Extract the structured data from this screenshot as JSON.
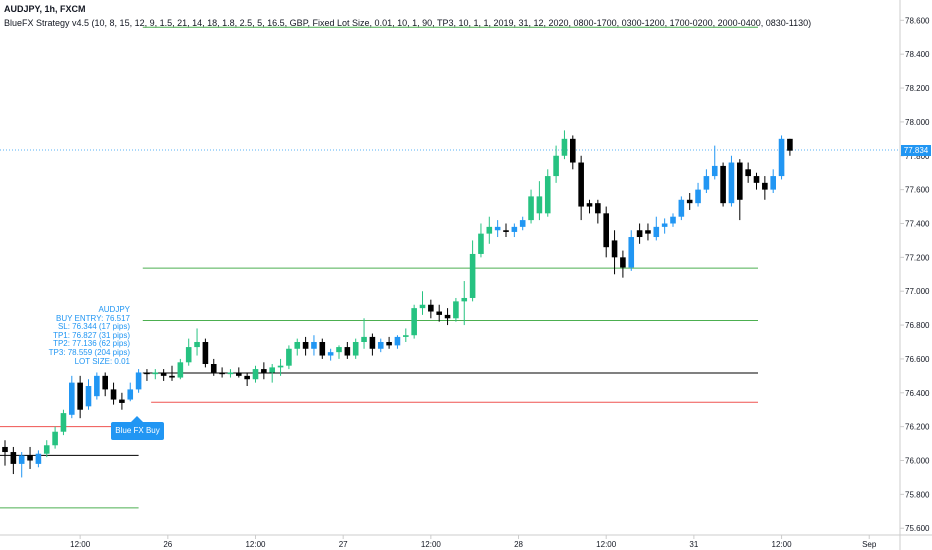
{
  "header": {
    "symbol_line": "AUDJPY, 1h, FXCM",
    "strategy_line": "BlueFX Strategy v4.5 (10, 8, 15, 12, 9, 1.5, 21, 14, 18, 1.8, 2.5, 5, 16.5, GBP, Fixed Lot Size, 0.01, 10, 1, 90, TP3, 10, 1, 1, 2019, 31, 12, 2020, 0800-1700, 0300-1200, 1700-0200, 2000-0400, 0830-1130)"
  },
  "trade_info": {
    "lines": [
      "AUDJPY",
      "BUY ENTRY: 76.517",
      "SL: 76.344 (17 pips)",
      "TP1: 76.827 (31 pips)",
      "TP2: 77.136 (62 pips)",
      "TP3: 78.559 (204 pips)",
      "LOT SIZE: 0.01"
    ]
  },
  "signal": {
    "label": "Blue FX Buy"
  },
  "current_price": {
    "label": "77.834",
    "value": 77.834
  },
  "colors": {
    "bull_green": "#26c281",
    "bull_blue": "#2196f3",
    "bear": "#000000",
    "tp_line": "#4caf50",
    "sl_line": "#ef5350",
    "entry_line": "#000000",
    "price_line": "#2196f3",
    "axis_text": "#131722",
    "axis_line": "#cccccc"
  },
  "chart_data": {
    "type": "candlestick",
    "symbol": "AUDJPY",
    "timeframe": "1h",
    "ylim": [
      75.56,
      78.72
    ],
    "y_ticks": [
      "75.600",
      "75.800",
      "76.000",
      "76.200",
      "76.400",
      "76.600",
      "76.800",
      "77.000",
      "77.200",
      "77.400",
      "77.600",
      "77.800",
      "78.000",
      "78.200",
      "78.400",
      "78.600"
    ],
    "x_ticks": [
      "12:00",
      "26",
      "12:00",
      "27",
      "12:00",
      "28",
      "12:00",
      "31",
      "12:00",
      "Sep"
    ],
    "x_tick_index": [
      9,
      19.5,
      30,
      40.5,
      51,
      61.5,
      72,
      82.5,
      93,
      103.5
    ],
    "levels": [
      {
        "value": 78.559,
        "type": "tp",
        "start": 16.5
      },
      {
        "value": 77.136,
        "type": "tp",
        "start": 16.5
      },
      {
        "value": 76.827,
        "type": "tp",
        "start": 16.5
      },
      {
        "value": 76.517,
        "type": "entry",
        "start": 16.5
      },
      {
        "value": 76.344,
        "type": "sl",
        "start": 17.5
      },
      {
        "value": 76.2,
        "type": "sl",
        "start": -1,
        "end": 16
      },
      {
        "value": 76.03,
        "type": "entry",
        "start": -1,
        "end": 16
      },
      {
        "value": 75.72,
        "type": "tp",
        "start": -1,
        "end": 16
      }
    ],
    "candles": [
      {
        "o": 76.08,
        "h": 76.12,
        "l": 75.97,
        "c": 76.05,
        "color": "bear"
      },
      {
        "o": 76.05,
        "h": 76.08,
        "l": 75.92,
        "c": 75.98,
        "color": "bear"
      },
      {
        "o": 75.98,
        "h": 76.05,
        "l": 75.9,
        "c": 76.03,
        "color": "blue"
      },
      {
        "o": 76.03,
        "h": 76.08,
        "l": 75.95,
        "c": 76.0,
        "color": "bear"
      },
      {
        "o": 75.98,
        "h": 76.06,
        "l": 75.96,
        "c": 76.04,
        "color": "blue"
      },
      {
        "o": 76.04,
        "h": 76.12,
        "l": 76.02,
        "c": 76.09,
        "color": "green"
      },
      {
        "o": 76.09,
        "h": 76.2,
        "l": 76.07,
        "c": 76.17,
        "color": "green"
      },
      {
        "o": 76.17,
        "h": 76.3,
        "l": 76.15,
        "c": 76.28,
        "color": "green"
      },
      {
        "o": 76.27,
        "h": 76.5,
        "l": 76.25,
        "c": 76.46,
        "color": "blue"
      },
      {
        "o": 76.46,
        "h": 76.5,
        "l": 76.25,
        "c": 76.3,
        "color": "bear"
      },
      {
        "o": 76.32,
        "h": 76.48,
        "l": 76.3,
        "c": 76.44,
        "color": "blue"
      },
      {
        "o": 76.38,
        "h": 76.52,
        "l": 76.36,
        "c": 76.5,
        "color": "blue"
      },
      {
        "o": 76.5,
        "h": 76.52,
        "l": 76.38,
        "c": 76.42,
        "color": "bear"
      },
      {
        "o": 76.42,
        "h": 76.46,
        "l": 76.33,
        "c": 76.36,
        "color": "bear"
      },
      {
        "o": 76.36,
        "h": 76.4,
        "l": 76.3,
        "c": 76.34,
        "color": "bear"
      },
      {
        "o": 76.36,
        "h": 76.46,
        "l": 76.35,
        "c": 76.42,
        "color": "blue"
      },
      {
        "o": 76.42,
        "h": 76.54,
        "l": 76.4,
        "c": 76.52,
        "color": "blue"
      },
      {
        "o": 76.52,
        "h": 76.54,
        "l": 76.47,
        "c": 76.51,
        "color": "bear"
      },
      {
        "o": 76.51,
        "h": 76.54,
        "l": 76.48,
        "c": 76.52,
        "color": "green"
      },
      {
        "o": 76.52,
        "h": 76.54,
        "l": 76.47,
        "c": 76.5,
        "color": "bear"
      },
      {
        "o": 76.5,
        "h": 76.56,
        "l": 76.47,
        "c": 76.49,
        "color": "bear"
      },
      {
        "o": 76.49,
        "h": 76.6,
        "l": 76.48,
        "c": 76.58,
        "color": "green"
      },
      {
        "o": 76.58,
        "h": 76.72,
        "l": 76.56,
        "c": 76.67,
        "color": "green"
      },
      {
        "o": 76.67,
        "h": 76.78,
        "l": 76.62,
        "c": 76.7,
        "color": "green"
      },
      {
        "o": 76.7,
        "h": 76.72,
        "l": 76.55,
        "c": 76.57,
        "color": "bear"
      },
      {
        "o": 76.57,
        "h": 76.6,
        "l": 76.5,
        "c": 76.52,
        "color": "bear"
      },
      {
        "o": 76.52,
        "h": 76.55,
        "l": 76.49,
        "c": 76.51,
        "color": "bear"
      },
      {
        "o": 76.51,
        "h": 76.54,
        "l": 76.49,
        "c": 76.52,
        "color": "green"
      },
      {
        "o": 76.52,
        "h": 76.55,
        "l": 76.49,
        "c": 76.5,
        "color": "bear"
      },
      {
        "o": 76.5,
        "h": 76.52,
        "l": 76.44,
        "c": 76.48,
        "color": "bear"
      },
      {
        "o": 76.48,
        "h": 76.56,
        "l": 76.46,
        "c": 76.54,
        "color": "green"
      },
      {
        "o": 76.54,
        "h": 76.58,
        "l": 76.48,
        "c": 76.52,
        "color": "bear"
      },
      {
        "o": 76.52,
        "h": 76.57,
        "l": 76.46,
        "c": 76.55,
        "color": "green"
      },
      {
        "o": 76.55,
        "h": 76.6,
        "l": 76.5,
        "c": 76.56,
        "color": "green"
      },
      {
        "o": 76.56,
        "h": 76.68,
        "l": 76.54,
        "c": 76.66,
        "color": "green"
      },
      {
        "o": 76.66,
        "h": 76.72,
        "l": 76.62,
        "c": 76.7,
        "color": "green"
      },
      {
        "o": 76.7,
        "h": 76.73,
        "l": 76.62,
        "c": 76.66,
        "color": "bear"
      },
      {
        "o": 76.66,
        "h": 76.74,
        "l": 76.62,
        "c": 76.7,
        "color": "blue"
      },
      {
        "o": 76.7,
        "h": 76.72,
        "l": 76.6,
        "c": 76.62,
        "color": "bear"
      },
      {
        "o": 76.62,
        "h": 76.66,
        "l": 76.59,
        "c": 76.64,
        "color": "blue"
      },
      {
        "o": 76.64,
        "h": 76.68,
        "l": 76.6,
        "c": 76.67,
        "color": "green"
      },
      {
        "o": 76.67,
        "h": 76.7,
        "l": 76.6,
        "c": 76.62,
        "color": "bear"
      },
      {
        "o": 76.62,
        "h": 76.72,
        "l": 76.6,
        "c": 76.7,
        "color": "green"
      },
      {
        "o": 76.7,
        "h": 76.84,
        "l": 76.66,
        "c": 76.73,
        "color": "green"
      },
      {
        "o": 76.73,
        "h": 76.75,
        "l": 76.62,
        "c": 76.66,
        "color": "bear"
      },
      {
        "o": 76.66,
        "h": 76.72,
        "l": 76.64,
        "c": 76.7,
        "color": "blue"
      },
      {
        "o": 76.7,
        "h": 76.73,
        "l": 76.66,
        "c": 76.68,
        "color": "bear"
      },
      {
        "o": 76.68,
        "h": 76.74,
        "l": 76.66,
        "c": 76.73,
        "color": "blue"
      },
      {
        "o": 76.73,
        "h": 76.78,
        "l": 76.7,
        "c": 76.74,
        "color": "green"
      },
      {
        "o": 76.74,
        "h": 76.92,
        "l": 76.72,
        "c": 76.9,
        "color": "green"
      },
      {
        "o": 76.9,
        "h": 77.0,
        "l": 76.86,
        "c": 76.92,
        "color": "green"
      },
      {
        "o": 76.92,
        "h": 76.95,
        "l": 76.84,
        "c": 76.88,
        "color": "bear"
      },
      {
        "o": 76.88,
        "h": 76.92,
        "l": 76.82,
        "c": 76.86,
        "color": "bear"
      },
      {
        "o": 76.86,
        "h": 76.9,
        "l": 76.8,
        "c": 76.84,
        "color": "bear"
      },
      {
        "o": 76.84,
        "h": 76.96,
        "l": 76.82,
        "c": 76.94,
        "color": "green"
      },
      {
        "o": 76.94,
        "h": 77.06,
        "l": 76.8,
        "c": 76.96,
        "color": "green"
      },
      {
        "o": 76.96,
        "h": 77.3,
        "l": 76.94,
        "c": 77.22,
        "color": "green"
      },
      {
        "o": 77.22,
        "h": 77.4,
        "l": 77.2,
        "c": 77.34,
        "color": "green"
      },
      {
        "o": 77.34,
        "h": 77.44,
        "l": 77.28,
        "c": 77.38,
        "color": "green"
      },
      {
        "o": 77.38,
        "h": 77.42,
        "l": 77.32,
        "c": 77.36,
        "color": "blue"
      },
      {
        "o": 77.36,
        "h": 77.4,
        "l": 77.32,
        "c": 77.35,
        "color": "bear"
      },
      {
        "o": 77.35,
        "h": 77.4,
        "l": 77.32,
        "c": 77.38,
        "color": "blue"
      },
      {
        "o": 77.38,
        "h": 77.44,
        "l": 77.36,
        "c": 77.42,
        "color": "blue"
      },
      {
        "o": 77.42,
        "h": 77.6,
        "l": 77.4,
        "c": 77.56,
        "color": "green"
      },
      {
        "o": 77.56,
        "h": 77.65,
        "l": 77.42,
        "c": 77.46,
        "color": "green"
      },
      {
        "o": 77.46,
        "h": 77.72,
        "l": 77.44,
        "c": 77.68,
        "color": "green"
      },
      {
        "o": 77.68,
        "h": 77.86,
        "l": 77.64,
        "c": 77.8,
        "color": "green"
      },
      {
        "o": 77.8,
        "h": 77.95,
        "l": 77.78,
        "c": 77.9,
        "color": "green"
      },
      {
        "o": 77.9,
        "h": 77.92,
        "l": 77.72,
        "c": 77.76,
        "color": "bear"
      },
      {
        "o": 77.76,
        "h": 77.8,
        "l": 77.42,
        "c": 77.5,
        "color": "bear"
      },
      {
        "o": 77.5,
        "h": 77.54,
        "l": 77.46,
        "c": 77.52,
        "color": "bear"
      },
      {
        "o": 77.52,
        "h": 77.54,
        "l": 77.4,
        "c": 77.46,
        "color": "bear"
      },
      {
        "o": 77.46,
        "h": 77.5,
        "l": 77.2,
        "c": 77.26,
        "color": "bear"
      },
      {
        "o": 77.3,
        "h": 77.36,
        "l": 77.1,
        "c": 77.2,
        "color": "bear"
      },
      {
        "o": 77.2,
        "h": 77.24,
        "l": 77.08,
        "c": 77.14,
        "color": "bear"
      },
      {
        "o": 77.14,
        "h": 77.36,
        "l": 77.12,
        "c": 77.32,
        "color": "blue"
      },
      {
        "o": 77.32,
        "h": 77.4,
        "l": 77.28,
        "c": 77.36,
        "color": "bear"
      },
      {
        "o": 77.36,
        "h": 77.4,
        "l": 77.3,
        "c": 77.34,
        "color": "bear"
      },
      {
        "o": 77.32,
        "h": 77.44,
        "l": 77.3,
        "c": 77.38,
        "color": "blue"
      },
      {
        "o": 77.38,
        "h": 77.43,
        "l": 77.34,
        "c": 77.4,
        "color": "blue"
      },
      {
        "o": 77.4,
        "h": 77.46,
        "l": 77.38,
        "c": 77.44,
        "color": "blue"
      },
      {
        "o": 77.44,
        "h": 77.56,
        "l": 77.42,
        "c": 77.54,
        "color": "blue"
      },
      {
        "o": 77.54,
        "h": 77.58,
        "l": 77.48,
        "c": 77.52,
        "color": "bear"
      },
      {
        "o": 77.52,
        "h": 77.64,
        "l": 77.5,
        "c": 77.6,
        "color": "blue"
      },
      {
        "o": 77.6,
        "h": 77.72,
        "l": 77.58,
        "c": 77.68,
        "color": "blue"
      },
      {
        "o": 77.68,
        "h": 77.86,
        "l": 77.66,
        "c": 77.74,
        "color": "blue"
      },
      {
        "o": 77.74,
        "h": 77.76,
        "l": 77.5,
        "c": 77.52,
        "color": "bear"
      },
      {
        "o": 77.52,
        "h": 77.8,
        "l": 77.5,
        "c": 77.76,
        "color": "blue"
      },
      {
        "o": 77.76,
        "h": 77.78,
        "l": 77.42,
        "c": 77.54,
        "color": "bear"
      },
      {
        "o": 77.72,
        "h": 77.76,
        "l": 77.64,
        "c": 77.68,
        "color": "bear"
      },
      {
        "o": 77.68,
        "h": 77.7,
        "l": 77.6,
        "c": 77.64,
        "color": "bear"
      },
      {
        "o": 77.64,
        "h": 77.68,
        "l": 77.54,
        "c": 77.6,
        "color": "bear"
      },
      {
        "o": 77.6,
        "h": 77.72,
        "l": 77.58,
        "c": 77.68,
        "color": "blue"
      },
      {
        "o": 77.68,
        "h": 77.92,
        "l": 77.66,
        "c": 77.9,
        "color": "blue"
      },
      {
        "o": 77.9,
        "h": 77.9,
        "l": 77.8,
        "c": 77.83,
        "color": "bear"
      }
    ]
  }
}
